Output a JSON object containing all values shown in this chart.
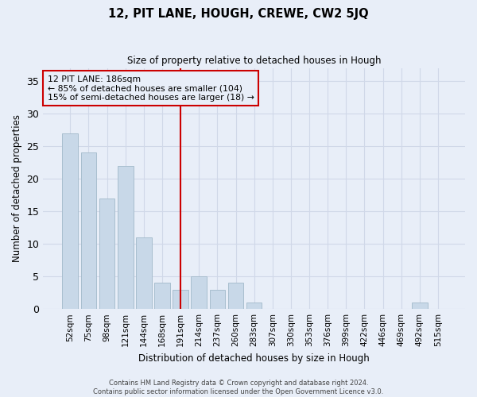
{
  "title": "12, PIT LANE, HOUGH, CREWE, CW2 5JQ",
  "subtitle": "Size of property relative to detached houses in Hough",
  "xlabel": "Distribution of detached houses by size in Hough",
  "ylabel": "Number of detached properties",
  "categories": [
    "52sqm",
    "75sqm",
    "98sqm",
    "121sqm",
    "144sqm",
    "168sqm",
    "191sqm",
    "214sqm",
    "237sqm",
    "260sqm",
    "283sqm",
    "307sqm",
    "330sqm",
    "353sqm",
    "376sqm",
    "399sqm",
    "422sqm",
    "446sqm",
    "469sqm",
    "492sqm",
    "515sqm"
  ],
  "values": [
    27,
    24,
    17,
    22,
    11,
    4,
    3,
    5,
    3,
    4,
    1,
    0,
    0,
    0,
    0,
    0,
    0,
    0,
    0,
    1,
    0
  ],
  "bar_color": "#c8d8e8",
  "bar_edge_color": "#a8bece",
  "grid_color": "#d0d8e8",
  "background_color": "#e8eef8",
  "annotation_box_color": "#cc0000",
  "vline_x_index": 6,
  "vline_color": "#cc0000",
  "annotation_line1": "12 PIT LANE: 186sqm",
  "annotation_line2": "← 85% of detached houses are smaller (104)",
  "annotation_line3": "15% of semi-detached houses are larger (18) →",
  "ylim": [
    0,
    37
  ],
  "yticks": [
    0,
    5,
    10,
    15,
    20,
    25,
    30,
    35
  ],
  "footer": "Contains HM Land Registry data © Crown copyright and database right 2024.\nContains public sector information licensed under the Open Government Licence v3.0."
}
